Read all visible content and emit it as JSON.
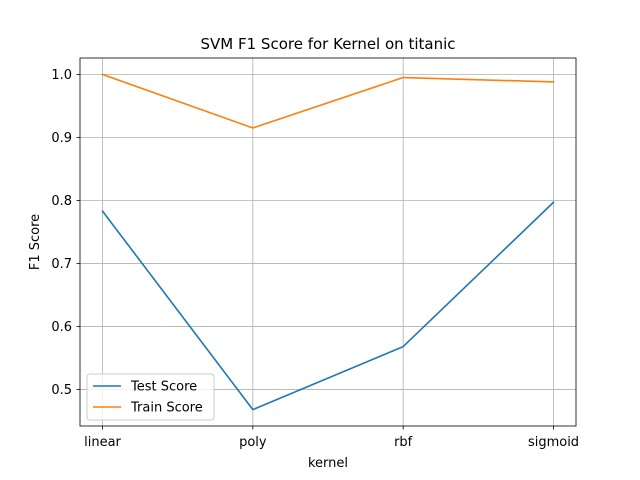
{
  "chart_data": {
    "type": "line",
    "title": "SVM F1 Score for Kernel on titanic",
    "xlabel": "kernel",
    "ylabel": "F1 Score",
    "categories": [
      "linear",
      "poly",
      "rbf",
      "sigmoid"
    ],
    "series": [
      {
        "name": "Test Score",
        "color": "#1f77b4",
        "values": [
          0.783,
          0.468,
          0.568,
          0.797
        ]
      },
      {
        "name": "Train Score",
        "color": "#ff7f0e",
        "values": [
          1.0,
          0.915,
          0.995,
          0.988
        ]
      }
    ],
    "ylim": [
      0.442,
      1.026
    ],
    "yticks": [
      0.5,
      0.6,
      0.7,
      0.8,
      0.9,
      1.0
    ],
    "ytick_labels": [
      "0.5",
      "0.6",
      "0.7",
      "0.8",
      "0.9",
      "1.0"
    ],
    "grid": true,
    "legend_position": "lower-left"
  }
}
